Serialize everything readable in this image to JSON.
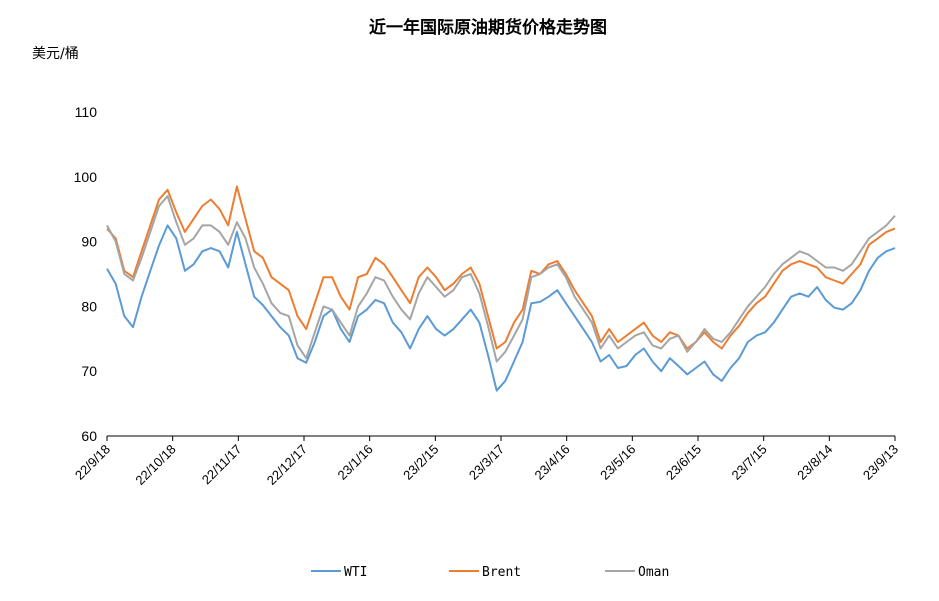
{
  "chart_data": {
    "type": "line",
    "title": "近一年国际原油期货价格走势图",
    "ylabel": "美元/桶",
    "xlabel": "",
    "ylim": [
      60,
      110
    ],
    "yticks": [
      60,
      70,
      80,
      90,
      100,
      110
    ],
    "grid": false,
    "legend_position": "bottom",
    "xticks": [
      "22/9/18",
      "22/10/18",
      "22/11/17",
      "22/12/17",
      "23/1/16",
      "23/2/15",
      "23/3/17",
      "23/4/16",
      "23/5/16",
      "23/6/15",
      "23/7/15",
      "23/8/14",
      "23/9/13"
    ],
    "x": [
      "22/9/18",
      "22/9/22",
      "22/9/26",
      "22/9/30",
      "22/10/4",
      "22/10/8",
      "22/10/12",
      "22/10/16",
      "22/10/20",
      "22/10/24",
      "22/10/28",
      "22/11/1",
      "22/11/5",
      "22/11/9",
      "22/11/13",
      "22/11/17",
      "22/11/21",
      "22/11/25",
      "22/11/29",
      "22/12/3",
      "22/12/7",
      "22/12/11",
      "22/12/15",
      "22/12/19",
      "22/12/23",
      "22/12/27",
      "22/12/31",
      "23/1/4",
      "23/1/8",
      "23/1/12",
      "23/1/16",
      "23/1/20",
      "23/1/24",
      "23/1/28",
      "23/2/1",
      "23/2/5",
      "23/2/9",
      "23/2/13",
      "23/2/17",
      "23/2/21",
      "23/2/25",
      "23/3/1",
      "23/3/5",
      "23/3/9",
      "23/3/13",
      "23/3/17",
      "23/3/21",
      "23/3/25",
      "23/3/29",
      "23/4/2",
      "23/4/6",
      "23/4/10",
      "23/4/14",
      "23/4/18",
      "23/4/22",
      "23/4/26",
      "23/4/30",
      "23/5/4",
      "23/5/8",
      "23/5/12",
      "23/5/16",
      "23/5/20",
      "23/5/24",
      "23/5/28",
      "23/6/1",
      "23/6/5",
      "23/6/9",
      "23/6/13",
      "23/6/17",
      "23/6/21",
      "23/6/25",
      "23/6/29",
      "23/7/3",
      "23/7/7",
      "23/7/11",
      "23/7/15",
      "23/7/19",
      "23/7/23",
      "23/7/27",
      "23/7/31",
      "23/8/4",
      "23/8/8",
      "23/8/12",
      "23/8/16",
      "23/8/20",
      "23/8/24",
      "23/8/28",
      "23/9/1",
      "23/9/5",
      "23/9/9",
      "23/9/13",
      "23/9/17"
    ],
    "series": [
      {
        "name": "WTI",
        "color": "#5B9BD5",
        "values": [
          85.8,
          83.5,
          78.5,
          76.8,
          81.5,
          85.5,
          89.4,
          92.5,
          90.5,
          85.5,
          86.5,
          88.5,
          89.0,
          88.5,
          86.0,
          91.5,
          86.5,
          81.5,
          80.2,
          78.5,
          76.8,
          75.5,
          72.0,
          71.3,
          74.5,
          78.5,
          79.5,
          76.5,
          74.5,
          78.5,
          79.5,
          81.0,
          80.5,
          77.5,
          76.0,
          73.5,
          76.5,
          78.5,
          76.5,
          75.5,
          76.5,
          78.0,
          79.5,
          77.5,
          72.5,
          67.0,
          68.5,
          71.5,
          74.5,
          80.5,
          80.7,
          81.5,
          82.5,
          80.5,
          78.5,
          76.5,
          74.5,
          71.5,
          72.5,
          70.5,
          70.8,
          72.5,
          73.5,
          71.5,
          70.0,
          72.0,
          70.8,
          69.5,
          70.5,
          71.5,
          69.5,
          68.5,
          70.5,
          72.0,
          74.5,
          75.5,
          76.0,
          77.5,
          79.5,
          81.5,
          82.0,
          81.5,
          83.0,
          81.0,
          79.8,
          79.5,
          80.5,
          82.5,
          85.5,
          87.5,
          88.5,
          89.0
        ]
      },
      {
        "name": "Brent",
        "color": "#ED7D31",
        "values": [
          92.0,
          90.5,
          85.5,
          84.5,
          88.5,
          92.5,
          96.5,
          98.0,
          94.5,
          91.5,
          93.5,
          95.5,
          96.5,
          95.0,
          92.5,
          98.5,
          93.5,
          88.5,
          87.5,
          84.5,
          83.5,
          82.5,
          78.5,
          76.5,
          80.5,
          84.5,
          84.5,
          81.5,
          79.5,
          84.5,
          85.0,
          87.5,
          86.5,
          84.5,
          82.5,
          80.5,
          84.5,
          86.0,
          84.5,
          82.5,
          83.5,
          85.0,
          86.0,
          83.5,
          78.5,
          73.5,
          74.5,
          77.5,
          79.5,
          85.5,
          85.0,
          86.5,
          87.0,
          85.0,
          82.5,
          80.5,
          78.5,
          74.5,
          76.5,
          74.5,
          75.5,
          76.5,
          77.5,
          75.5,
          74.5,
          76.0,
          75.5,
          73.5,
          74.5,
          76.0,
          74.5,
          73.5,
          75.5,
          77.0,
          79.0,
          80.5,
          81.5,
          83.5,
          85.5,
          86.5,
          87.0,
          86.5,
          86.0,
          84.5,
          84.0,
          83.5,
          85.0,
          86.5,
          89.5,
          90.5,
          91.5,
          92.0
        ]
      },
      {
        "name": "Oman",
        "color": "#A5A5A5",
        "values": [
          92.5,
          90.0,
          85.0,
          84.0,
          87.5,
          91.5,
          95.5,
          97.0,
          93.0,
          89.5,
          90.5,
          92.5,
          92.5,
          91.5,
          89.5,
          93.0,
          90.5,
          86.0,
          83.5,
          80.5,
          79.0,
          78.5,
          74.0,
          72.0,
          76.0,
          80.0,
          79.5,
          77.5,
          75.5,
          80.0,
          82.0,
          84.5,
          84.0,
          81.5,
          79.5,
          78.0,
          82.0,
          84.5,
          83.0,
          81.5,
          82.5,
          84.5,
          85.0,
          82.0,
          77.0,
          71.5,
          73.0,
          75.5,
          78.0,
          84.5,
          85.0,
          86.0,
          86.5,
          84.5,
          81.5,
          79.5,
          77.5,
          73.5,
          75.5,
          73.5,
          74.5,
          75.5,
          76.0,
          74.0,
          73.5,
          75.0,
          75.5,
          73.0,
          74.5,
          76.5,
          75.0,
          74.5,
          76.0,
          78.0,
          80.0,
          81.5,
          83.0,
          85.0,
          86.5,
          87.5,
          88.5,
          88.0,
          87.0,
          86.0,
          86.0,
          85.5,
          86.5,
          88.5,
          90.5,
          91.5,
          92.5,
          94.0
        ]
      }
    ]
  }
}
